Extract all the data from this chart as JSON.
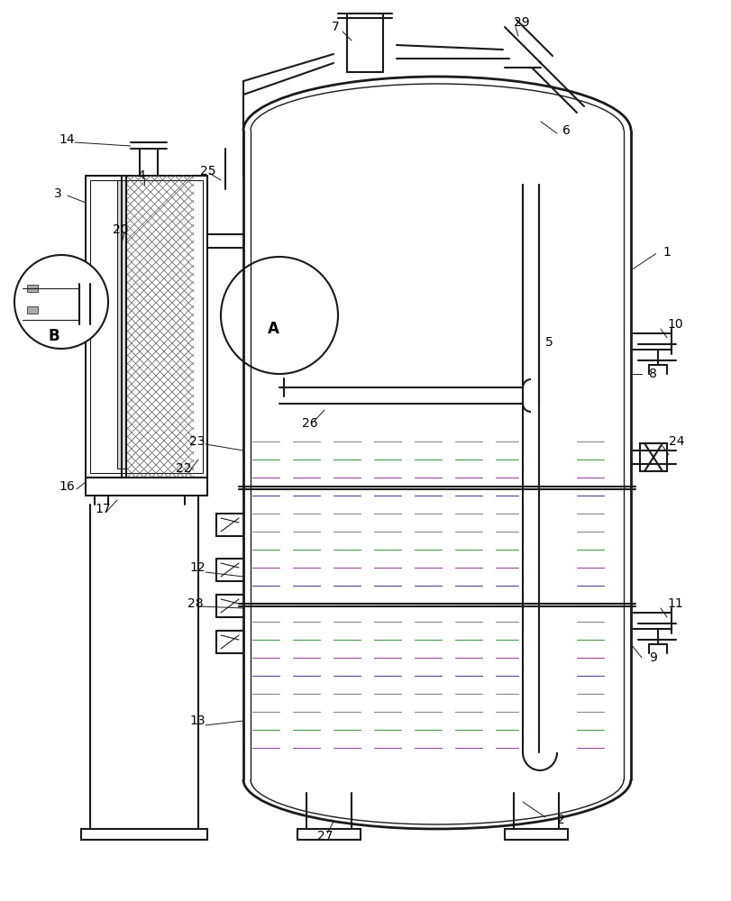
{
  "bg_color": "#ffffff",
  "line_color": "#1a1a1a",
  "line_width": 1.5,
  "thin_line": 0.8,
  "thick_line": 2.0,
  "label_fontsize": 10,
  "label_bold": false,
  "circle_label_fontsize": 11,
  "dashed_colors": [
    "#888888",
    "#4a9a4a",
    "#9a4a9a",
    "#4a4a9a"
  ],
  "title": ""
}
